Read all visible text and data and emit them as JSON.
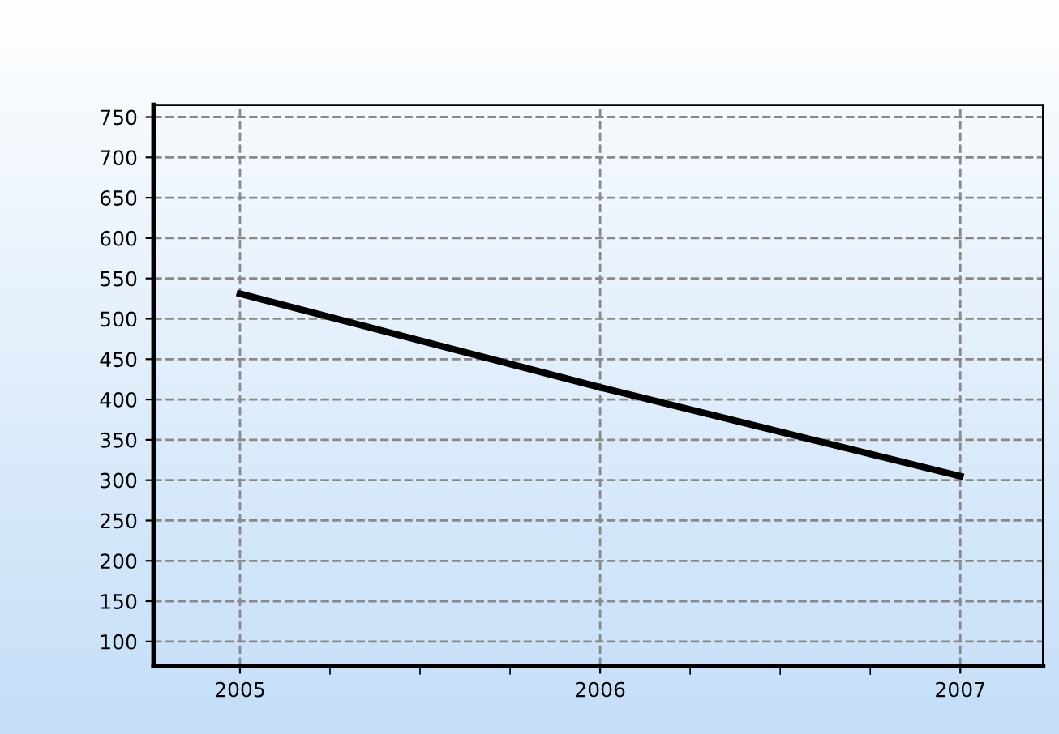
{
  "chart_data": {
    "type": "line",
    "x": [
      2005,
      2006,
      2007
    ],
    "series": [
      {
        "color": "#000000",
        "values": [
          531,
          415,
          305
        ]
      }
    ],
    "xlim": [
      2004.76,
      2007.23
    ],
    "xticks": [
      2005,
      2006,
      2007
    ],
    "ylim": [
      70,
      765
    ],
    "yticks": [
      100,
      150,
      200,
      250,
      300,
      350,
      400,
      450,
      500,
      550,
      600,
      650,
      700,
      750
    ],
    "grid": true,
    "line_style": "solid",
    "marker": "none"
  }
}
